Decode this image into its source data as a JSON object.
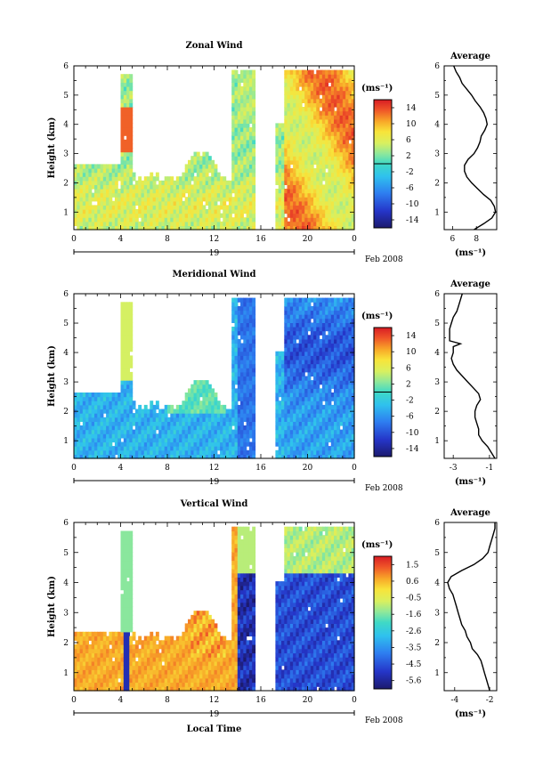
{
  "figure": {
    "xlabel": "Local Time",
    "date_label": "Feb 2008",
    "day_label": "19",
    "average_title": "Average",
    "ylabel": "Height (km)",
    "unit": "(ms⁻¹)"
  },
  "chart_data": [
    {
      "type": "heatmap",
      "title": "Zonal Wind",
      "xlabel": "",
      "ylabel": "Height (km)",
      "x_ticks": [
        "0",
        "4",
        "8",
        "12",
        "16",
        "20",
        "0"
      ],
      "xlim": [
        0,
        24
      ],
      "y_ticks": [
        "1",
        "2",
        "3",
        "4",
        "5",
        "6"
      ],
      "ylim": [
        0.4,
        6
      ],
      "colorbar": {
        "label": "(ms⁻¹)",
        "ticks": [
          "14",
          "10",
          "6",
          "2",
          "-2",
          "-6",
          "-10",
          "-14"
        ],
        "range": [
          -16,
          16
        ],
        "contour_level": 0
      },
      "average_profile": {
        "title": "Average",
        "xlabel": "(ms⁻¹)",
        "x_ticks": [
          "6",
          "8"
        ],
        "xlim": [
          5.3,
          9.7
        ],
        "y_ticks": [
          "1",
          "2",
          "3",
          "4",
          "5",
          "6"
        ],
        "ylim": [
          0.4,
          6
        ],
        "heights": [
          0.4,
          0.6,
          0.8,
          1.0,
          1.2,
          1.4,
          1.6,
          1.8,
          2.0,
          2.2,
          2.4,
          2.6,
          2.8,
          3.0,
          3.2,
          3.4,
          3.6,
          3.8,
          4.0,
          4.2,
          4.4,
          4.6,
          4.8,
          5.0,
          5.2,
          5.4,
          5.6,
          5.8,
          6.0
        ],
        "values": [
          7.8,
          8.6,
          9.3,
          9.6,
          9.5,
          9.2,
          8.6,
          8.1,
          7.6,
          7.2,
          7.0,
          7.0,
          7.3,
          7.8,
          8.1,
          8.3,
          8.4,
          8.7,
          8.9,
          8.8,
          8.6,
          8.3,
          7.9,
          7.6,
          7.2,
          6.8,
          6.6,
          6.3,
          6.1
        ]
      }
    },
    {
      "type": "heatmap",
      "title": "Meridional Wind",
      "xlabel": "",
      "ylabel": "Height (km)",
      "x_ticks": [
        "0",
        "4",
        "8",
        "12",
        "16",
        "20",
        "0"
      ],
      "xlim": [
        0,
        24
      ],
      "y_ticks": [
        "1",
        "2",
        "3",
        "4",
        "5",
        "6"
      ],
      "ylim": [
        0.4,
        6
      ],
      "colorbar": {
        "label": "(ms⁻¹)",
        "ticks": [
          "14",
          "10",
          "6",
          "2",
          "-2",
          "-6",
          "-10",
          "-14"
        ],
        "range": [
          -16,
          16
        ],
        "contour_level": 0
      },
      "average_profile": {
        "title": "Average",
        "xlabel": "(ms⁻¹)",
        "x_ticks": [
          "-3",
          "-1"
        ],
        "xlim": [
          -3.5,
          -0.6
        ],
        "y_ticks": [
          "1",
          "2",
          "3",
          "4",
          "5",
          "6"
        ],
        "ylim": [
          0.4,
          6
        ],
        "heights": [
          0.4,
          0.6,
          0.8,
          1.0,
          1.2,
          1.4,
          1.6,
          1.8,
          2.0,
          2.2,
          2.4,
          2.6,
          2.8,
          3.0,
          3.2,
          3.4,
          3.6,
          3.8,
          4.0,
          4.2,
          4.3,
          4.4,
          4.6,
          4.8,
          5.0,
          5.2,
          5.4,
          5.6,
          5.8,
          6.0
        ],
        "values": [
          -0.7,
          -0.9,
          -1.1,
          -1.4,
          -1.6,
          -1.6,
          -1.7,
          -1.8,
          -1.8,
          -1.7,
          -1.5,
          -1.6,
          -1.9,
          -2.2,
          -2.5,
          -2.8,
          -3.0,
          -3.1,
          -3.0,
          -3.0,
          -2.6,
          -3.2,
          -3.2,
          -3.2,
          -3.1,
          -3.0,
          -2.8,
          -2.7,
          -2.6,
          -2.5
        ]
      }
    },
    {
      "type": "heatmap",
      "title": "Vertical Wind",
      "xlabel": "Local Time",
      "ylabel": "Height (km)",
      "x_ticks": [
        "0",
        "4",
        "8",
        "12",
        "16",
        "20",
        "0"
      ],
      "xlim": [
        0,
        24
      ],
      "y_ticks": [
        "1",
        "2",
        "3",
        "4",
        "5",
        "6"
      ],
      "ylim": [
        0.4,
        6
      ],
      "colorbar": {
        "label": "(ms⁻¹)",
        "ticks": [
          "1.5",
          "0.6",
          "-0.5",
          "-1.6",
          "-2.6",
          "-3.5",
          "-4.5",
          "-5.6"
        ],
        "range": [
          -6.0,
          2.0
        ]
      },
      "average_profile": {
        "title": "Average",
        "xlabel": "(ms⁻¹)",
        "x_ticks": [
          "-4",
          "-2"
        ],
        "xlim": [
          -4.6,
          -1.6
        ],
        "y_ticks": [
          "1",
          "2",
          "3",
          "4",
          "5",
          "6"
        ],
        "ylim": [
          0.4,
          6
        ],
        "heights": [
          0.4,
          0.6,
          0.8,
          1.0,
          1.2,
          1.4,
          1.6,
          1.8,
          2.0,
          2.2,
          2.4,
          2.6,
          2.8,
          3.0,
          3.2,
          3.4,
          3.6,
          3.8,
          4.0,
          4.2,
          4.4,
          4.6,
          4.8,
          5.0,
          5.2,
          5.4,
          5.6,
          5.8,
          6.0
        ],
        "values": [
          -2.0,
          -2.1,
          -2.2,
          -2.3,
          -2.4,
          -2.5,
          -2.7,
          -3.0,
          -3.1,
          -3.3,
          -3.4,
          -3.6,
          -3.7,
          -3.8,
          -3.9,
          -4.0,
          -4.1,
          -4.3,
          -4.4,
          -4.2,
          -3.6,
          -2.9,
          -2.4,
          -2.1,
          -2.0,
          -1.9,
          -1.8,
          -1.7,
          -1.7
        ]
      }
    }
  ]
}
